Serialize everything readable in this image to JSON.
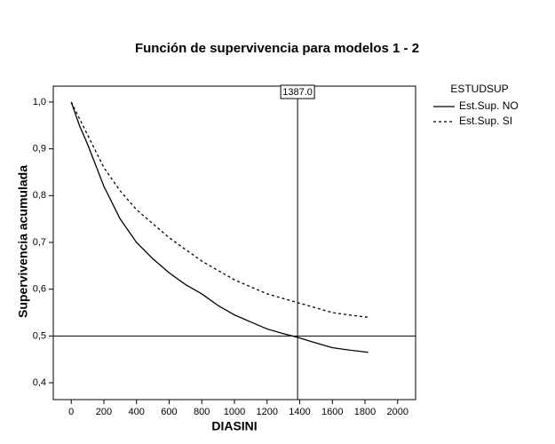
{
  "chart_data": {
    "type": "line",
    "title": "Función de supervivencia para modelos 1 - 2",
    "xlabel": "DIASINI",
    "ylabel": "Supervivencia acumulada",
    "xlim": [
      -110,
      2110
    ],
    "ylim": [
      0.364,
      1.034
    ],
    "xticks": [
      0,
      200,
      400,
      600,
      800,
      1000,
      1200,
      1400,
      1600,
      1800,
      2000
    ],
    "yticks": [
      {
        "value": 0.4,
        "label": "0,4"
      },
      {
        "value": 0.5,
        "label": "0,5"
      },
      {
        "value": 0.6,
        "label": "0,6"
      },
      {
        "value": 0.7,
        "label": "0,7"
      },
      {
        "value": 0.8,
        "label": "0,8"
      },
      {
        "value": 0.9,
        "label": "0,9"
      },
      {
        "value": 1.0,
        "label": "1,0"
      }
    ],
    "xref": {
      "value": 1387,
      "label": "1387.0"
    },
    "yref": 0.5,
    "legend_title": "ESTUDSUP",
    "legend_position": "outside-top-right",
    "series": [
      {
        "name": "Est.Sup. NO",
        "color": "#000000",
        "line_style": "solid",
        "x": [
          0,
          50,
          100,
          200,
          300,
          400,
          500,
          600,
          700,
          800,
          900,
          1000,
          1100,
          1200,
          1300,
          1387,
          1500,
          1600,
          1700,
          1820
        ],
        "values": [
          1.0,
          0.95,
          0.91,
          0.82,
          0.75,
          0.7,
          0.665,
          0.635,
          0.61,
          0.59,
          0.565,
          0.545,
          0.53,
          0.515,
          0.505,
          0.497,
          0.485,
          0.475,
          0.47,
          0.465
        ]
      },
      {
        "name": "Est.Sup. SI",
        "color": "#000000",
        "line_style": "dashed",
        "x": [
          0,
          100,
          200,
          300,
          400,
          500,
          600,
          700,
          800,
          900,
          1000,
          1100,
          1200,
          1300,
          1400,
          1500,
          1600,
          1700,
          1820
        ],
        "values": [
          1.0,
          0.93,
          0.86,
          0.81,
          0.77,
          0.74,
          0.71,
          0.685,
          0.66,
          0.64,
          0.62,
          0.605,
          0.59,
          0.58,
          0.57,
          0.56,
          0.55,
          0.545,
          0.54
        ]
      }
    ]
  }
}
